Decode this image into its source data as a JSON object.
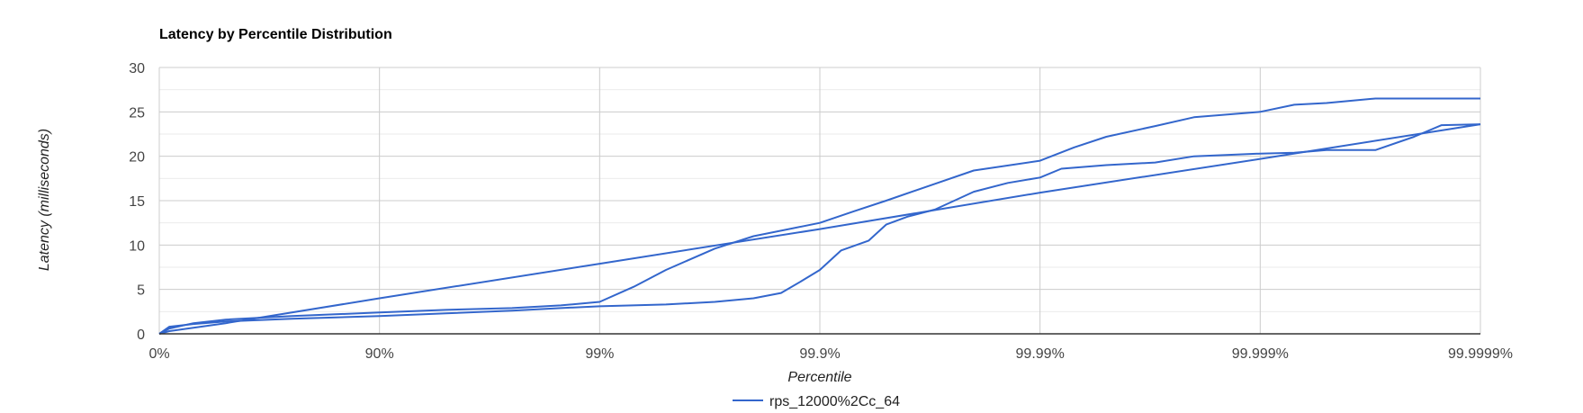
{
  "chart_data": {
    "type": "line",
    "title": "Latency by Percentile Distribution",
    "xlabel": "Percentile",
    "ylabel": "Latency (milliseconds)",
    "x_scale": "percentile-log",
    "x_ticks": [
      "0%",
      "90%",
      "99%",
      "99.9%",
      "99.99%",
      "99.999%",
      "99.9999%"
    ],
    "ylim": [
      0,
      30
    ],
    "y_ticks": [
      0,
      5,
      10,
      15,
      20,
      25,
      30
    ],
    "grid": true,
    "legend_position": "bottom",
    "colors": {
      "series": "#3366cc",
      "grid_major": "#cccccc",
      "grid_minor": "#ebebeb",
      "baseline": "#333333"
    },
    "series": [
      {
        "name": "rps_12000%2Cc_64",
        "points": [
          [
            "0%",
            0
          ],
          [
            "10%",
            0.8
          ],
          [
            "30%",
            1.1
          ],
          [
            "50%",
            1.4
          ],
          [
            "75%",
            1.7
          ],
          [
            "90%",
            2.0
          ],
          [
            "95%",
            2.3
          ],
          [
            "97.5%",
            2.6
          ],
          [
            "98.5%",
            2.9
          ],
          [
            "99%",
            3.1
          ],
          [
            "99.5%",
            3.3
          ],
          [
            "99.7%",
            3.6
          ],
          [
            "99.8%",
            4.0
          ],
          [
            "99.85%",
            4.6
          ],
          [
            "99.88%",
            6.0
          ],
          [
            "99.9%",
            7.2
          ],
          [
            "99.92%",
            9.4
          ],
          [
            "99.94%",
            10.5
          ],
          [
            "99.95%",
            12.3
          ],
          [
            "99.96%",
            13.2
          ],
          [
            "99.97%",
            14.0
          ],
          [
            "99.98%",
            16.0
          ],
          [
            "99.986%",
            17.0
          ],
          [
            "99.99%",
            17.6
          ],
          [
            "99.992%",
            18.6
          ],
          [
            "99.995%",
            19.0
          ],
          [
            "99.997%",
            19.3
          ],
          [
            "99.998%",
            20.0
          ],
          [
            "99.999%",
            20.3
          ],
          [
            "99.9993%",
            20.4
          ],
          [
            "99.9995%",
            20.7
          ],
          [
            "99.9997%",
            20.7
          ],
          [
            "99.9998%",
            22.2
          ],
          [
            "99.99985%",
            23.5
          ],
          [
            "99.9999%",
            23.6
          ]
        ]
      },
      {
        "name": "",
        "points": [
          [
            "0%",
            0
          ],
          [
            "10%",
            0.6
          ],
          [
            "30%",
            1.2
          ],
          [
            "50%",
            1.6
          ],
          [
            "75%",
            2.0
          ],
          [
            "90%",
            2.4
          ],
          [
            "95%",
            2.7
          ],
          [
            "97.5%",
            2.9
          ],
          [
            "98.5%",
            3.2
          ],
          [
            "99%",
            3.6
          ],
          [
            "99.3%",
            5.3
          ],
          [
            "99.5%",
            7.2
          ],
          [
            "99.7%",
            9.6
          ],
          [
            "99.8%",
            11.0
          ],
          [
            "99.9%",
            12.5
          ],
          [
            "99.93%",
            13.8
          ],
          [
            "99.95%",
            15.0
          ],
          [
            "99.97%",
            16.9
          ],
          [
            "99.98%",
            18.4
          ],
          [
            "99.99%",
            19.5
          ],
          [
            "99.993%",
            21.0
          ],
          [
            "99.995%",
            22.2
          ],
          [
            "99.997%",
            23.4
          ],
          [
            "99.998%",
            24.4
          ],
          [
            "99.999%",
            25.0
          ],
          [
            "99.9993%",
            25.8
          ],
          [
            "99.9995%",
            26.0
          ],
          [
            "99.9997%",
            26.5
          ],
          [
            "99.9999%",
            26.5
          ]
        ]
      },
      {
        "name": "",
        "points": [
          [
            "0%",
            0
          ],
          [
            "10%",
            0.3
          ],
          [
            "50%",
            1.2
          ],
          [
            "90%",
            4.0
          ],
          [
            "99%",
            7.9
          ],
          [
            "99.9%",
            11.8
          ],
          [
            "99.99%",
            15.9
          ],
          [
            "99.999%",
            19.7
          ],
          [
            "99.9999%",
            23.6
          ]
        ]
      }
    ]
  }
}
